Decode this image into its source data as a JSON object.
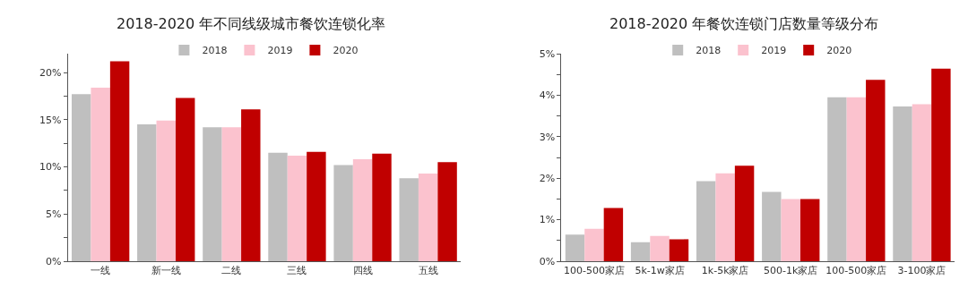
{
  "chart_data": [
    {
      "type": "bar",
      "title": "2018-2020 年不同线级城市餐饮连锁化率",
      "categories": [
        "一线",
        "新一线",
        "二线",
        "三线",
        "四线",
        "五线"
      ],
      "series": [
        {
          "name": "2018",
          "color": "#bfbfbf",
          "values": [
            17.7,
            14.5,
            14.2,
            11.5,
            10.2,
            8.8
          ]
        },
        {
          "name": "2019",
          "color": "#fbc2ce",
          "values": [
            18.4,
            14.9,
            14.2,
            11.2,
            10.8,
            9.3
          ]
        },
        {
          "name": "2020",
          "color": "#c00000",
          "values": [
            21.2,
            17.3,
            16.1,
            11.6,
            11.4,
            10.5
          ]
        }
      ],
      "ylim": [
        0,
        22
      ],
      "yticks": [
        {
          "value": 0,
          "label": "0%"
        },
        {
          "value": 2.5,
          "label": null
        },
        {
          "value": 5,
          "label": "5%"
        },
        {
          "value": 7.5,
          "label": null
        },
        {
          "value": 10,
          "label": "10%"
        },
        {
          "value": 12.5,
          "label": null
        },
        {
          "value": 15,
          "label": "15%"
        },
        {
          "value": 17.5,
          "label": null
        },
        {
          "value": 20,
          "label": "20%"
        }
      ],
      "legend": "top"
    },
    {
      "type": "bar",
      "title": "2018-2020 年餐饮连锁门店数量等级分布",
      "categories": [
        "100-500家店",
        "5k-1w家店",
        "1k-5k家店",
        "500-1k家店",
        "100-500家店",
        "3-100家店"
      ],
      "series": [
        {
          "name": "2018",
          "color": "#bfbfbf",
          "values": [
            0.64,
            0.46,
            1.93,
            1.67,
            3.95,
            3.73
          ]
        },
        {
          "name": "2019",
          "color": "#fbc2ce",
          "values": [
            0.78,
            0.61,
            2.12,
            1.5,
            3.95,
            3.78
          ]
        },
        {
          "name": "2020",
          "color": "#c00000",
          "values": [
            1.28,
            0.53,
            2.3,
            1.5,
            4.37,
            4.64
          ]
        }
      ],
      "ylim": [
        0,
        5
      ],
      "yticks": [
        {
          "value": 0,
          "label": "0%"
        },
        {
          "value": 0.5,
          "label": null
        },
        {
          "value": 1,
          "label": "1%"
        },
        {
          "value": 1.5,
          "label": null
        },
        {
          "value": 2,
          "label": "2%"
        },
        {
          "value": 2.5,
          "label": null
        },
        {
          "value": 3,
          "label": "3%"
        },
        {
          "value": 3.5,
          "label": null
        },
        {
          "value": 4,
          "label": "4%"
        },
        {
          "value": 4.5,
          "label": null
        },
        {
          "value": 5,
          "label": "5%"
        }
      ],
      "legend": "top"
    }
  ]
}
